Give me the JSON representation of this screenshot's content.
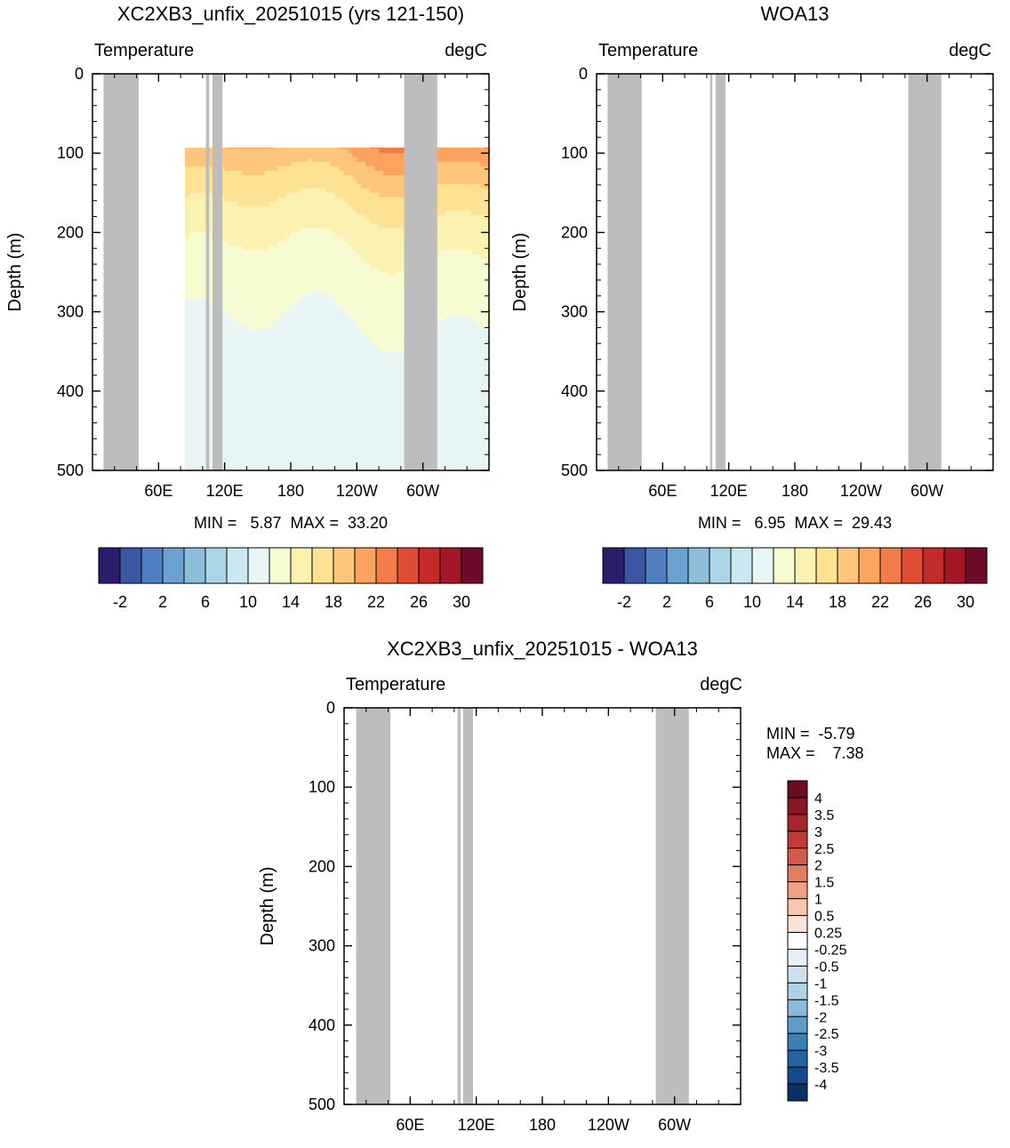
{
  "figure": {
    "panels": [
      {
        "id": "model",
        "title": "XC2XB3_unfix_20251015 (yrs 121-150)",
        "left_label": "Temperature",
        "right_label": "degC",
        "ylabel": "Depth (m)",
        "stats": "MIN =   5.87  MAX =  33.20"
      },
      {
        "id": "obs",
        "title": "WOA13",
        "left_label": "Temperature",
        "right_label": "degC",
        "ylabel": "Depth (m)",
        "stats": "MIN =   6.95  MAX =  29.43"
      },
      {
        "id": "diff",
        "title": "XC2XB3_unfix_20251015 - WOA13",
        "left_label": "Temperature",
        "right_label": "degC",
        "ylabel": "Depth (m)",
        "stats_min": "MIN =  -5.79",
        "stats_max": "MAX =    7.38"
      }
    ]
  },
  "chart_data": [
    {
      "type": "heatmap",
      "title": "XC2XB3_unfix_20251015 (yrs 121-150)",
      "ylabel": "Depth (m)",
      "y_ticks": [
        "0",
        "100",
        "200",
        "300",
        "400",
        "500"
      ],
      "ylim": [
        500,
        0
      ],
      "x_ticks": [
        "60E",
        "120E",
        "180",
        "120W",
        "60W"
      ],
      "min": 5.87,
      "max": 33.2,
      "units": "degC",
      "colorbar_labels": [
        "-2",
        "2",
        "6",
        "10",
        "14",
        "18",
        "22",
        "26",
        "30"
      ],
      "colors": [
        "#2b1d6b",
        "#3b56a3",
        "#4f7fc0",
        "#6aa1d0",
        "#8dbedb",
        "#acd6e7",
        "#cbe7ef",
        "#e8f5f5",
        "#f6fbd2",
        "#fbf2b1",
        "#fde294",
        "#fdc67b",
        "#fba35f",
        "#f47b4a",
        "#e04b36",
        "#c52a2a",
        "#a21625",
        "#6d0b2a"
      ],
      "levels": [
        -4,
        -2,
        0,
        2,
        4,
        6,
        8,
        10,
        12,
        14,
        16,
        18,
        20,
        22,
        24,
        26,
        28,
        30
      ]
    },
    {
      "type": "heatmap",
      "title": "WOA13",
      "ylabel": "Depth (m)",
      "y_ticks": [
        "0",
        "100",
        "200",
        "300",
        "400",
        "500"
      ],
      "ylim": [
        500,
        0
      ],
      "x_ticks": [
        "60E",
        "120E",
        "180",
        "120W",
        "60W"
      ],
      "min": 6.95,
      "max": 29.43,
      "units": "degC",
      "colorbar_labels": [
        "-2",
        "2",
        "6",
        "10",
        "14",
        "18",
        "22",
        "26",
        "30"
      ],
      "colors": [
        "#2b1d6b",
        "#3b56a3",
        "#4f7fc0",
        "#6aa1d0",
        "#8dbedb",
        "#acd6e7",
        "#cbe7ef",
        "#e8f5f5",
        "#f6fbd2",
        "#fbf2b1",
        "#fde294",
        "#fdc67b",
        "#fba35f",
        "#f47b4a",
        "#e04b36",
        "#c52a2a",
        "#a21625",
        "#6d0b2a"
      ],
      "levels": [
        -4,
        -2,
        0,
        2,
        4,
        6,
        8,
        10,
        12,
        14,
        16,
        18,
        20,
        22,
        24,
        26,
        28,
        30
      ]
    },
    {
      "type": "heatmap",
      "title": "XC2XB3_unfix_20251015 - WOA13",
      "ylabel": "Depth (m)",
      "y_ticks": [
        "0",
        "100",
        "200",
        "300",
        "400",
        "500"
      ],
      "ylim": [
        500,
        0
      ],
      "x_ticks": [
        "60E",
        "120E",
        "180",
        "120W",
        "60W"
      ],
      "min": -5.79,
      "max": 7.38,
      "units": "degC",
      "colorbar_labels": [
        "4",
        "3.5",
        "3",
        "2.5",
        "2",
        "1.5",
        "1",
        "0.5",
        "0.25",
        "-0.25",
        "-0.5",
        "-1",
        "-1.5",
        "-2",
        "-2.5",
        "-3",
        "-3.5",
        "-4"
      ],
      "colors": [
        "#6d0b1f",
        "#8a1526",
        "#a8252e",
        "#c13b3a",
        "#d35a4a",
        "#e17d60",
        "#eda285",
        "#f6c6ad",
        "#fce4d8",
        "#ffffff",
        "#e6f0f7",
        "#cde2ef",
        "#b0d1e6",
        "#8bbbdc",
        "#5e9ccb",
        "#3b7fb8",
        "#2463a2",
        "#144a88",
        "#0b3266"
      ]
    }
  ]
}
